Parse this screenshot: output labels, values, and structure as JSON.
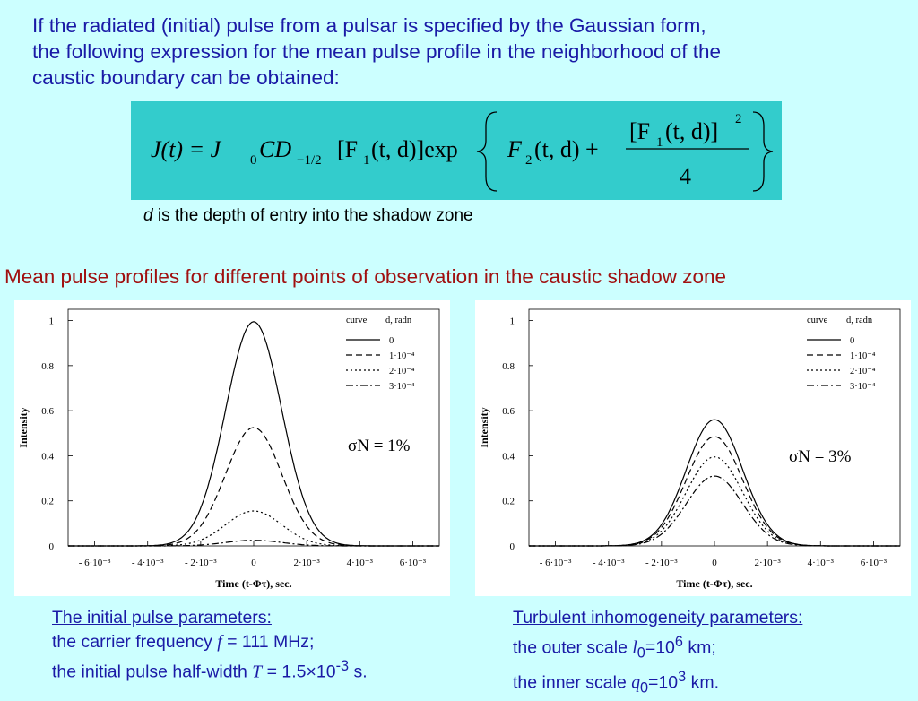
{
  "intro": {
    "line1": "If the radiated (initial) pulse from a pulsar is specified by the Gaussian form,",
    "line2": "the following expression for the mean pulse profile in the neighborhood of the",
    "line3": "caustic boundary can be obtained:"
  },
  "formula": {
    "lhs": "J(t) = J",
    "lhs_sub": "0",
    "cd": "CD",
    "cd_sub": "−1/2",
    "f1": "[F",
    "f1_sub": "1",
    "f1_args": "(t, d)]exp",
    "f2": "F",
    "f2_sub": "2",
    "f2_args": "(t, d) +",
    "num": "[F",
    "num_sub": "1",
    "num_args": "(t, d)]",
    "num_sup": "2",
    "den": "4"
  },
  "depth_note": {
    "var": "d",
    "text": " is the depth of entry into the shadow zone"
  },
  "section_title": "Mean pulse profiles for different points of observation in the caustic shadow zone",
  "plots": {
    "xlabel": "Time (t-Φτ), sec.",
    "ylabel": "Intensity",
    "legend_header_curve": "curve",
    "legend_header_d": "d, radn",
    "legend_labels": [
      "0",
      "1·10⁻⁴",
      "2·10⁻⁴",
      "3·10⁻⁴"
    ],
    "y_ticks": [
      "0",
      "0.2",
      "0.4",
      "0.6",
      "0.8",
      "1"
    ],
    "x_ticks": [
      "- 6·10⁻³",
      "- 4·10⁻³",
      "- 2·10⁻³",
      "0",
      "2·10⁻³",
      "4·10⁻³",
      "6·10⁻³"
    ],
    "left_sigma": "σN = 1%",
    "right_sigma": "σN = 3%"
  },
  "chart_data": [
    {
      "type": "line",
      "title": "",
      "xlabel": "Time (t-Φτ), sec.",
      "ylabel": "Intensity",
      "xlim": [
        -0.007,
        0.007
      ],
      "ylim": [
        0,
        1.05
      ],
      "legend": "top-right",
      "annotation": "σN = 1%",
      "half_width": 0.0015,
      "series": [
        {
          "name": "0",
          "style": "solid",
          "peak": 0.995
        },
        {
          "name": "1·10⁻⁴",
          "style": "dashed",
          "peak": 0.525
        },
        {
          "name": "2·10⁻⁴",
          "style": "dotted",
          "peak": 0.155
        },
        {
          "name": "3·10⁻⁴",
          "style": "dashdot",
          "peak": 0.025
        }
      ]
    },
    {
      "type": "line",
      "title": "",
      "xlabel": "Time (t-Φτ), sec.",
      "ylabel": "Intensity",
      "xlim": [
        -0.007,
        0.007
      ],
      "ylim": [
        0,
        1.05
      ],
      "legend": "top-right",
      "annotation": "σN = 3%",
      "half_width": 0.0015,
      "series": [
        {
          "name": "0",
          "style": "solid",
          "peak": 0.56
        },
        {
          "name": "1·10⁻⁴",
          "style": "dashed",
          "peak": 0.485
        },
        {
          "name": "2·10⁻⁴",
          "style": "dotted",
          "peak": 0.395
        },
        {
          "name": "3·10⁻⁴",
          "style": "dashdot",
          "peak": 0.31
        }
      ]
    }
  ],
  "params_left": {
    "heading": "The initial pulse parameters:",
    "line1_pre": "the carrier frequency ",
    "line1_var": "f",
    "line1_eq": " = ",
    "line1_val": "111 MHz;",
    "line2_pre": "the initial pulse half-width ",
    "line2_var": "T",
    "line2_eq": " = ",
    "line2_val": "1.5×10",
    "line2_sup": "-3",
    "line2_post": " s."
  },
  "params_right": {
    "heading": "Turbulent inhomogeneity parameters:",
    "line1_pre": "the outer scale ",
    "line1_var": "l",
    "line1_sub": "0",
    "line1_val": "=10",
    "line1_sup": "6",
    "line1_post": " km;",
    "line2_pre": "the inner scale ",
    "line2_var": "q",
    "line2_sub": "0",
    "line2_val": "=10",
    "line2_sup": "3",
    "line2_post": " km."
  },
  "colors": {
    "background": "#ccffff",
    "formula_box": "#33cccc",
    "intro_text": "#1a1aa6",
    "section_title": "#a01010"
  }
}
